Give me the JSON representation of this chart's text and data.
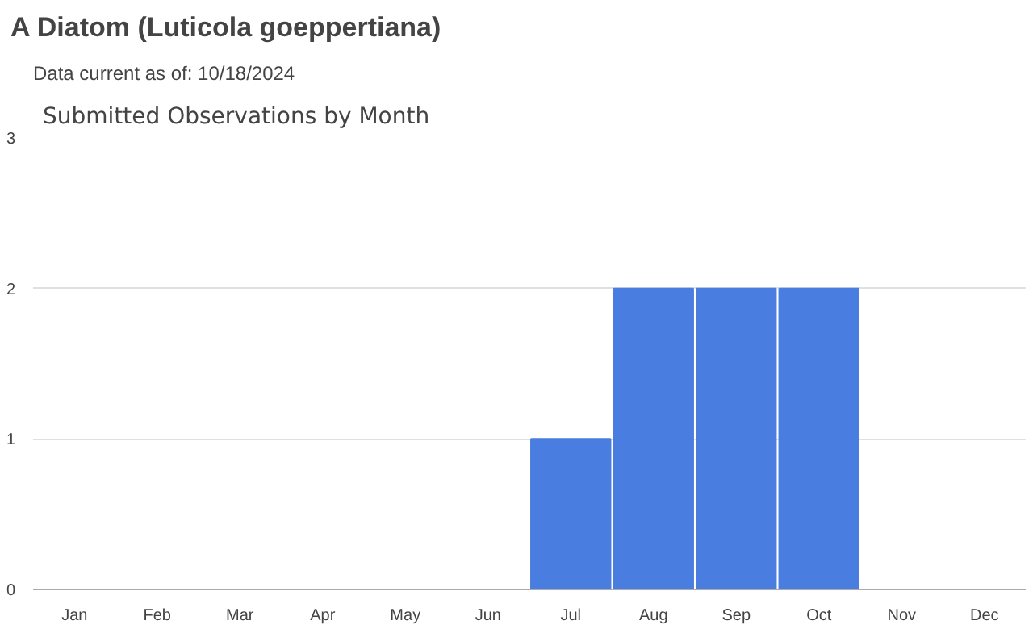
{
  "chart_data": {
    "type": "bar",
    "title": "A Diatom   (Luticola goeppertiana)",
    "subtitle": "Data current as of: 10/18/2024",
    "annotations": [
      "Submitted Observations by Month"
    ],
    "categories": [
      "Jan",
      "Feb",
      "Mar",
      "Apr",
      "May",
      "Jun",
      "Jul",
      "Aug",
      "Sep",
      "Oct",
      "Nov",
      "Dec"
    ],
    "values": [
      0,
      0,
      0,
      0,
      0,
      0,
      1,
      2,
      2,
      2,
      0,
      0
    ],
    "color": "#4a7de0",
    "ylim": [
      0,
      3
    ],
    "yticks": [
      0,
      1,
      2,
      3
    ],
    "grid": "y"
  }
}
